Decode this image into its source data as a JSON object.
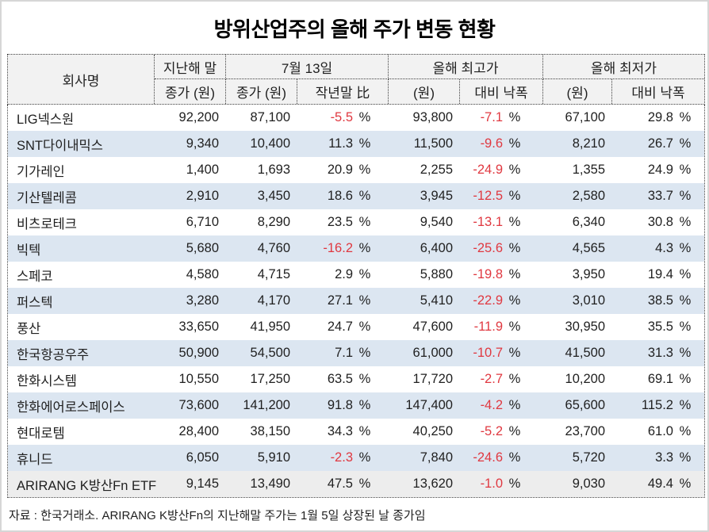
{
  "title": "방위산업주의 올해 주가 변동 현황",
  "footnote": "자료 : 한국거래소. ARIRANG K방산Fn의 지난해말 주가는 1월 5일 상장된 날 종가임",
  "colors": {
    "negative_red": "#e03840",
    "row_alt_blue": "#dce6f1",
    "row_etf_gray": "#ededed",
    "header_gray": "#f2f2f2",
    "text": "#1f1f1f"
  },
  "chart_data": {
    "type": "table",
    "title": "방위산업주의 올해 주가 변동 현황",
    "footnote": "자료 : 한국거래소. ARIRANG K방산Fn의 지난해말 주가는 1월 5일 상장된 날 종가임",
    "percent_sign": "%",
    "header": {
      "company": "회사명",
      "last_year_group": "지난해 말",
      "jul13_group": "7월 13일",
      "high_group": "올해 최고가",
      "low_group": "올해 최저가",
      "close_won_a": "종가 (원)",
      "close_won_b": "종가 (원)",
      "vs_year_end": "작년말 比",
      "won_a": "(원)",
      "drop_a": "대비 낙폭",
      "won_b": "(원)",
      "drop_b": "대비 낙폭"
    },
    "rows": [
      {
        "name": "LIG넥스원",
        "last_close": "92,200",
        "jul13_close": "87,100",
        "vs_year_end": "-5.5",
        "high": "93,800",
        "high_drop": "-7.1",
        "low": "67,100",
        "low_drop": "29.8"
      },
      {
        "name": "SNT다이내믹스",
        "last_close": "9,340",
        "jul13_close": "10,400",
        "vs_year_end": "11.3",
        "high": "11,500",
        "high_drop": "-9.6",
        "low": "8,210",
        "low_drop": "26.7"
      },
      {
        "name": "기가레인",
        "last_close": "1,400",
        "jul13_close": "1,693",
        "vs_year_end": "20.9",
        "high": "2,255",
        "high_drop": "-24.9",
        "low": "1,355",
        "low_drop": "24.9"
      },
      {
        "name": "기산텔레콤",
        "last_close": "2,910",
        "jul13_close": "3,450",
        "vs_year_end": "18.6",
        "high": "3,945",
        "high_drop": "-12.5",
        "low": "2,580",
        "low_drop": "33.7"
      },
      {
        "name": "비츠로테크",
        "last_close": "6,710",
        "jul13_close": "8,290",
        "vs_year_end": "23.5",
        "high": "9,540",
        "high_drop": "-13.1",
        "low": "6,340",
        "low_drop": "30.8"
      },
      {
        "name": "빅텍",
        "last_close": "5,680",
        "jul13_close": "4,760",
        "vs_year_end": "-16.2",
        "high": "6,400",
        "high_drop": "-25.6",
        "low": "4,565",
        "low_drop": "4.3"
      },
      {
        "name": "스페코",
        "last_close": "4,580",
        "jul13_close": "4,715",
        "vs_year_end": "2.9",
        "high": "5,880",
        "high_drop": "-19.8",
        "low": "3,950",
        "low_drop": "19.4"
      },
      {
        "name": "퍼스텍",
        "last_close": "3,280",
        "jul13_close": "4,170",
        "vs_year_end": "27.1",
        "high": "5,410",
        "high_drop": "-22.9",
        "low": "3,010",
        "low_drop": "38.5"
      },
      {
        "name": "풍산",
        "last_close": "33,650",
        "jul13_close": "41,950",
        "vs_year_end": "24.7",
        "high": "47,600",
        "high_drop": "-11.9",
        "low": "30,950",
        "low_drop": "35.5"
      },
      {
        "name": "한국항공우주",
        "last_close": "50,900",
        "jul13_close": "54,500",
        "vs_year_end": "7.1",
        "high": "61,000",
        "high_drop": "-10.7",
        "low": "41,500",
        "low_drop": "31.3"
      },
      {
        "name": "한화시스템",
        "last_close": "10,550",
        "jul13_close": "17,250",
        "vs_year_end": "63.5",
        "high": "17,720",
        "high_drop": "-2.7",
        "low": "10,200",
        "low_drop": "69.1"
      },
      {
        "name": "한화에어로스페이스",
        "last_close": "73,600",
        "jul13_close": "141,200",
        "vs_year_end": "91.8",
        "high": "147,400",
        "high_drop": "-4.2",
        "low": "65,600",
        "low_drop": "115.2"
      },
      {
        "name": "현대로템",
        "last_close": "28,400",
        "jul13_close": "38,150",
        "vs_year_end": "34.3",
        "high": "40,250",
        "high_drop": "-5.2",
        "low": "23,700",
        "low_drop": "61.0"
      },
      {
        "name": "휴니드",
        "last_close": "6,050",
        "jul13_close": "5,910",
        "vs_year_end": "-2.3",
        "high": "7,840",
        "high_drop": "-24.6",
        "low": "5,720",
        "low_drop": "3.3"
      },
      {
        "name": "ARIRANG K방산Fn ETF",
        "last_close": "9,145",
        "jul13_close": "13,490",
        "vs_year_end": "47.5",
        "high": "13,620",
        "high_drop": "-1.0",
        "low": "9,030",
        "low_drop": "49.4",
        "etf": true
      }
    ]
  }
}
